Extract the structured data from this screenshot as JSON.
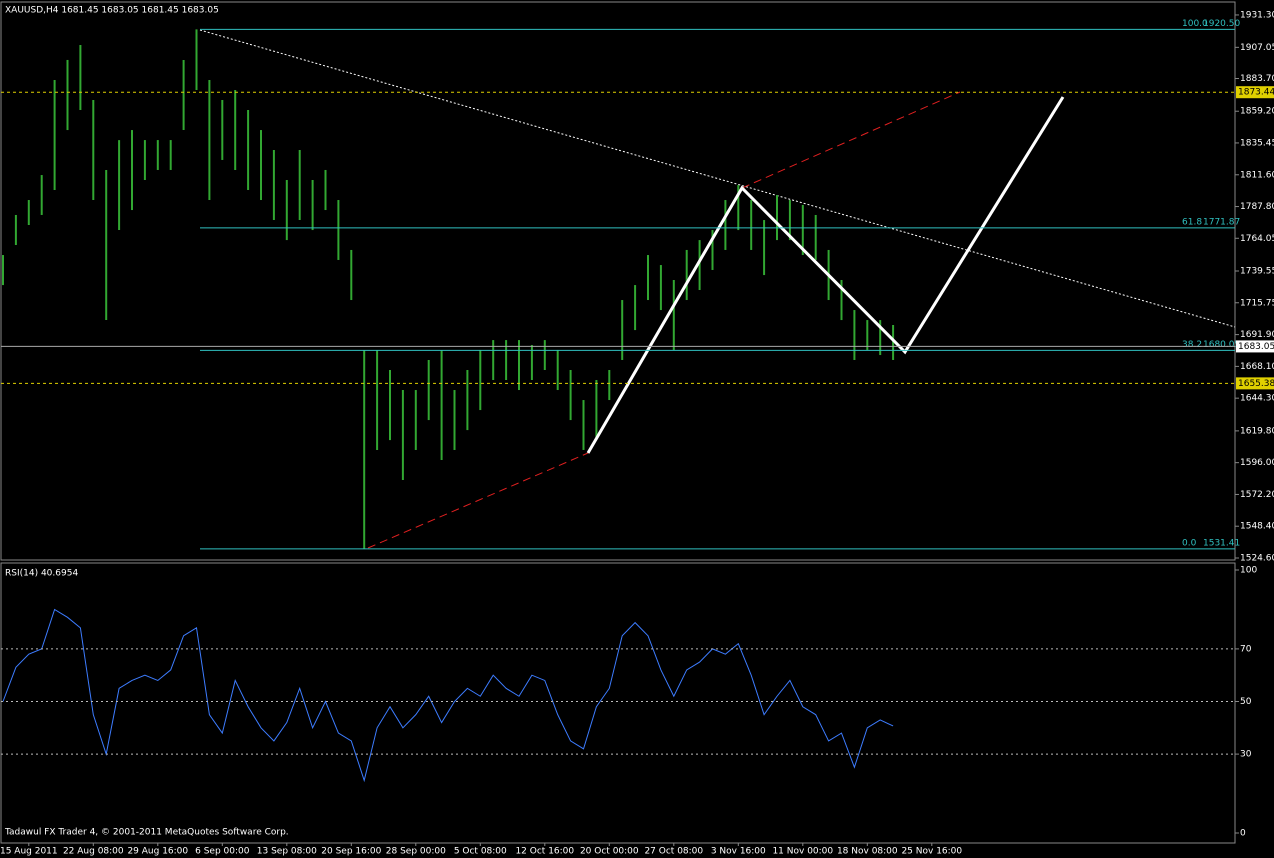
{
  "chart_data": [
    {
      "type": "range_bar",
      "title": "XAUUSD,H4  1681.45 1683.05 1681.45 1683.05",
      "color": "#32a832",
      "x_labels": [
        "15 Aug 2011",
        "22 Aug 08:00",
        "29 Aug 16:00",
        "6 Sep 00:00",
        "13 Sep 08:00",
        "20 Sep 16:00",
        "28 Sep 00:00",
        "5 Oct 08:00",
        "12 Oct 16:00",
        "20 Oct 00:00",
        "27 Oct 08:00",
        "3 Nov 16:00",
        "11 Nov 00:00",
        "18 Nov 08:00",
        "25 Nov 16:00"
      ],
      "high": [
        1751.5,
        1781.5,
        1792.7,
        1811.4,
        1882.6,
        1897.6,
        1908.8,
        1867.6,
        1815.2,
        1837.6,
        1845.1,
        1837.6,
        1837.6,
        1837.6,
        1897.6,
        1920.5,
        1882.6,
        1867.6,
        1875.1,
        1860.1,
        1845.1,
        1830.2,
        1807.7,
        1830.2,
        1807.7,
        1815.2,
        1792.7,
        1755.3,
        1680.4,
        1680.4,
        1665.4,
        1650.4,
        1650.4,
        1672.9,
        1680.4,
        1650.4,
        1665.4,
        1680.4,
        1687.8,
        1687.8,
        1687.8,
        1684.1,
        1687.8,
        1680.4,
        1665.4,
        1642.9,
        1657.9,
        1665.4,
        1717.8,
        1729.0,
        1751.5,
        1744.0,
        1732.8,
        1755.3,
        1762.7,
        1770.2,
        1792.7,
        1803.9,
        1792.7,
        1777.7,
        1796.4,
        1792.7,
        1789.0,
        1781.5,
        1755.3,
        1732.8,
        1710.3,
        1702.8,
        1702.8,
        1699.1
      ],
      "low": [
        1729.0,
        1759.0,
        1774.0,
        1781.5,
        1800.2,
        1845.1,
        1860.1,
        1792.7,
        1702.8,
        1770.2,
        1785.2,
        1807.7,
        1815.2,
        1815.2,
        1845.1,
        1875.1,
        1792.7,
        1822.7,
        1815.2,
        1800.2,
        1792.7,
        1777.7,
        1762.7,
        1777.7,
        1770.2,
        1785.2,
        1747.8,
        1717.8,
        1531.4,
        1605.5,
        1612.9,
        1583.0,
        1605.5,
        1627.9,
        1598.0,
        1605.5,
        1620.4,
        1635.4,
        1657.9,
        1657.9,
        1650.4,
        1657.9,
        1665.4,
        1650.4,
        1627.9,
        1605.5,
        1612.9,
        1642.9,
        1672.9,
        1695.3,
        1717.8,
        1710.3,
        1680.4,
        1717.8,
        1725.3,
        1740.3,
        1755.3,
        1770.2,
        1755.3,
        1736.5,
        1762.7,
        1762.7,
        1751.5,
        1747.8,
        1717.8,
        1702.8,
        1672.9,
        1680.4,
        1676.6,
        1672.9
      ],
      "ylim": [
        1523.1,
        1942.5
      ],
      "yticks": [
        {
          "value": 1931.3,
          "label": "1931.30"
        },
        1907.05,
        {
          "value": 1883.7,
          "label": "1883.70"
        },
        {
          "value": 1859.2,
          "label": "1859.20"
        },
        1835.45,
        {
          "value": 1811.6,
          "label": "1811.60"
        },
        {
          "value": 1787.8,
          "label": "1787.80"
        },
        1764.05,
        1739.55,
        1715.75,
        {
          "value": 1691.9,
          "label": "1691.90"
        },
        {
          "value": 1668.1,
          "label": "1668.10"
        },
        {
          "value": 1644.3,
          "label": "1644.30"
        },
        {
          "value": 1619.8,
          "label": "1619.80"
        },
        {
          "value": 1596.0,
          "label": "1596.00"
        },
        {
          "value": 1572.2,
          "label": "1572.20"
        },
        {
          "value": 1548.4,
          "label": "1548.40"
        },
        {
          "value": 1524.6,
          "label": "1524.60"
        }
      ],
      "fibo": [
        {
          "ratio": "100.0",
          "value": 1920.5,
          "label": "1920.50"
        },
        {
          "ratio": "61.8",
          "value": 1771.87,
          "label": "1771.87"
        },
        {
          "ratio": "38.2",
          "value": 1680.05,
          "label": "1680.05"
        },
        {
          "ratio": "0.0",
          "value": 1531.41,
          "label": "1531.41"
        }
      ],
      "levels": [
        {
          "value": 1873.44,
          "label": "1873.44"
        },
        {
          "value": 1655.38,
          "label": "1655.38"
        }
      ],
      "price": {
        "value": 1683.05,
        "label": "1683.05"
      }
    },
    {
      "type": "line",
      "title": "RSI(14) 40.6954",
      "color": "#3d7cff",
      "values": [
        50,
        63,
        68,
        70,
        85,
        82,
        78,
        45,
        30,
        55,
        58,
        60,
        58,
        62,
        75,
        78,
        45,
        38,
        58,
        48,
        40,
        35,
        42,
        55,
        40,
        50,
        38,
        35,
        20,
        40,
        48,
        40,
        45,
        52,
        42,
        50,
        55,
        52,
        60,
        55,
        52,
        60,
        58,
        45,
        35,
        32,
        48,
        55,
        75,
        80,
        75,
        62,
        52,
        62,
        65,
        70,
        68,
        72,
        60,
        45,
        52,
        58,
        48,
        45,
        35,
        38,
        25,
        40,
        43,
        40.6954
      ],
      "ylim": [
        0,
        100
      ],
      "yticks": [
        100,
        70,
        50,
        30,
        0
      ],
      "levels": [
        70,
        50,
        30
      ]
    }
  ],
  "footer": "Tadawul FX Trader 4, © 2001-2011 MetaQuotes Software Corp."
}
